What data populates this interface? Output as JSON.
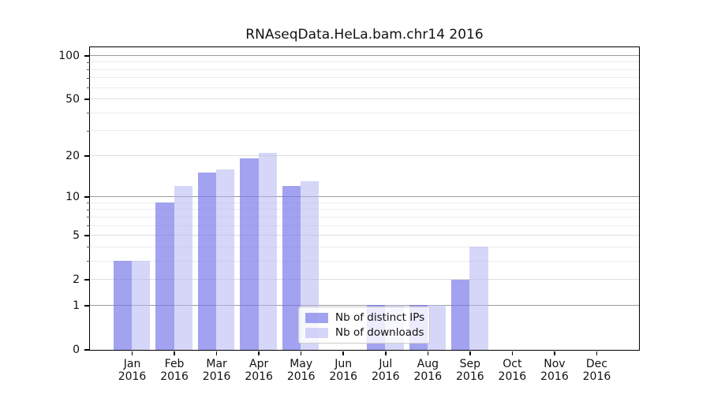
{
  "title": "RNAseqData.HeLa.bam.chr14 2016",
  "colors": {
    "bar_distinct_ips": "rgba(116,116,232,0.67)",
    "bar_downloads": "rgba(181,181,242,0.55)",
    "grid_decade": "#9b9b9b",
    "grid_major": "#dedede",
    "grid_minor": "#ececec",
    "axis": "#000000",
    "legend_border": "#cccccc"
  },
  "chart_data": {
    "type": "bar",
    "title": "RNAseqData.HeLa.bam.chr14 2016",
    "categories": [
      "Jan 2016",
      "Feb 2016",
      "Mar 2016",
      "Apr 2016",
      "May 2016",
      "Jun 2016",
      "Jul 2016",
      "Aug 2016",
      "Sep 2016",
      "Oct 2016",
      "Nov 2016",
      "Dec 2016"
    ],
    "x_tick_month": [
      "Jan",
      "Feb",
      "Mar",
      "Apr",
      "May",
      "Jun",
      "Jul",
      "Aug",
      "Sep",
      "Oct",
      "Nov",
      "Dec"
    ],
    "x_tick_year": "2016",
    "series": [
      {
        "name": "Nb of distinct IPs",
        "values": [
          3,
          9,
          15,
          19,
          12,
          0,
          1,
          1,
          2,
          0,
          0,
          0
        ]
      },
      {
        "name": "Nb of downloads",
        "values": [
          3,
          12,
          16,
          21,
          13,
          0,
          1,
          1,
          4,
          0,
          0,
          0
        ]
      }
    ],
    "yscale": "log1p",
    "ylim": [
      0,
      114
    ],
    "y_tick_values": [
      0,
      1,
      2,
      5,
      10,
      20,
      50,
      100
    ],
    "y_tick_labels": [
      "0",
      "1",
      "2",
      "5",
      "10",
      "20",
      "50",
      "100"
    ],
    "y_minor_values": [
      3,
      4,
      6,
      7,
      8,
      9,
      30,
      40,
      60,
      70,
      80,
      90
    ],
    "grid": "on",
    "legend_position": "inside lower-center"
  }
}
